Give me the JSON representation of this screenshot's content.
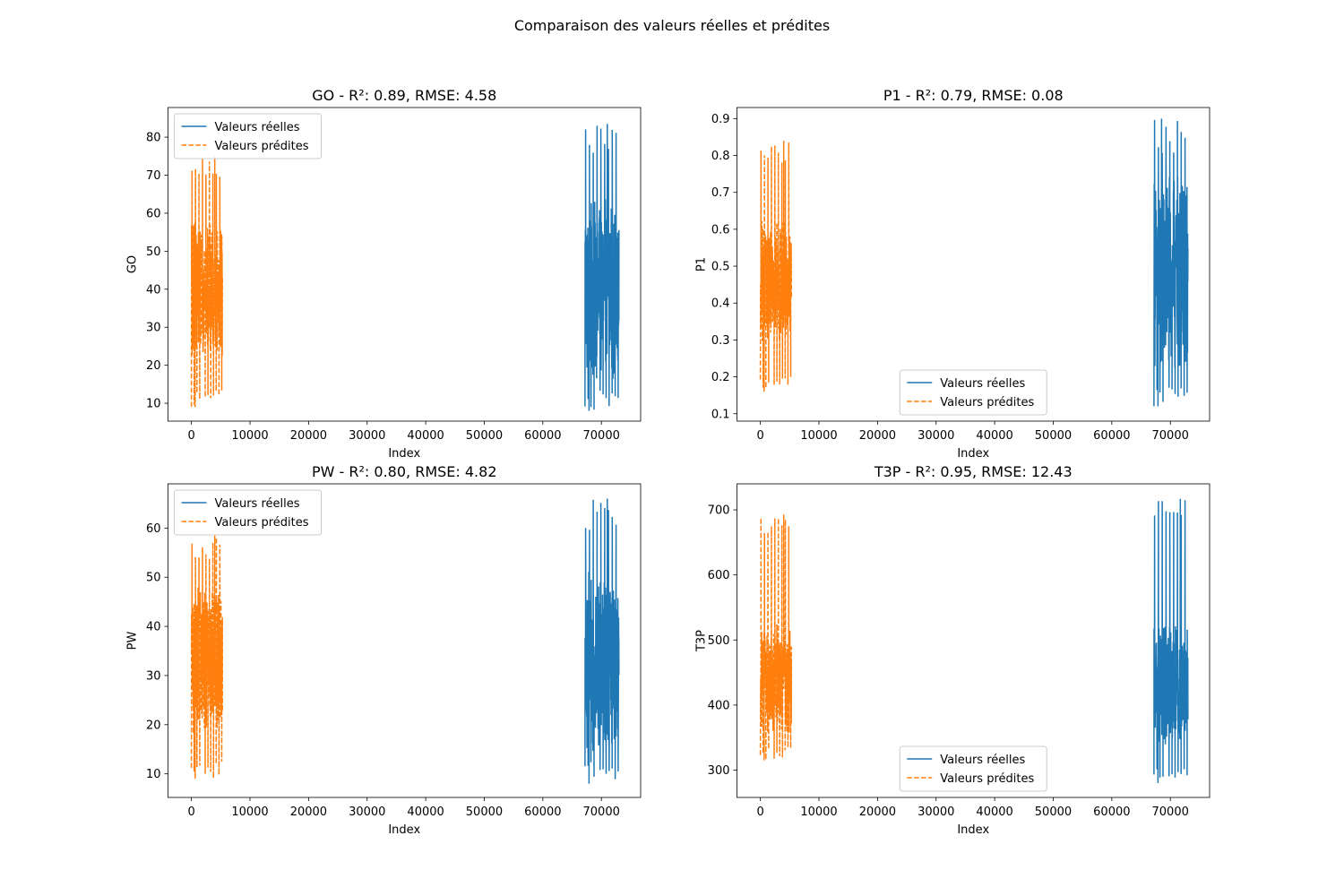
{
  "figure": {
    "suptitle": "Comparaison des valeurs réelles et prédites"
  },
  "colors": {
    "real": "#1f77b4",
    "predicted": "#ff7f0e"
  },
  "chart_data": [
    {
      "type": "line",
      "title": "GO - R²: 0.89, RMSE: 4.58",
      "xlabel": "Index",
      "ylabel": "GO",
      "xlim": [
        -4000,
        76700
      ],
      "ylim": [
        5.3,
        87.8
      ],
      "xticks": [
        0,
        10000,
        20000,
        30000,
        40000,
        50000,
        60000,
        70000
      ],
      "yticks": [
        10,
        20,
        30,
        40,
        50,
        60,
        70,
        80
      ],
      "grid": false,
      "legend_position": "top-left",
      "series": [
        {
          "name": "Valeurs réelles",
          "style": "solid",
          "x_range": [
            67200,
            73000
          ],
          "min": 8,
          "max": 83.5,
          "peak_x": 71000,
          "center": 40,
          "spread": 14
        },
        {
          "name": "Valeurs prédites",
          "style": "dashed",
          "x_range": [
            0,
            5300
          ],
          "min": 9,
          "max": 75,
          "peak_x": 4000,
          "center": 40,
          "spread": 11
        }
      ]
    },
    {
      "type": "line",
      "title": "P1 - R²: 0.79, RMSE: 0.08",
      "xlabel": "Index",
      "ylabel": "P1",
      "xlim": [
        -4000,
        76700
      ],
      "ylim": [
        0.08,
        0.93
      ],
      "xticks": [
        0,
        10000,
        20000,
        30000,
        40000,
        50000,
        60000,
        70000
      ],
      "yticks": [
        0.1,
        0.2,
        0.3,
        0.4,
        0.5,
        0.6,
        0.7,
        0.8,
        0.9
      ],
      "grid": false,
      "legend_position": "bottom-center",
      "series": [
        {
          "name": "Valeurs réelles",
          "style": "solid",
          "x_range": [
            67200,
            73000
          ],
          "min": 0.12,
          "max": 0.9,
          "peak_x": 68500,
          "center": 0.48,
          "spread": 0.16
        },
        {
          "name": "Valeurs prédites",
          "style": "dashed",
          "x_range": [
            0,
            5300
          ],
          "min": 0.16,
          "max": 0.84,
          "peak_x": 4000,
          "center": 0.46,
          "spread": 0.1
        }
      ]
    },
    {
      "type": "line",
      "title": "PW - R²: 0.80, RMSE: 4.82",
      "xlabel": "Index",
      "ylabel": "PW",
      "xlim": [
        -4000,
        76700
      ],
      "ylim": [
        5.2,
        69.0
      ],
      "xticks": [
        0,
        10000,
        20000,
        30000,
        40000,
        50000,
        60000,
        70000
      ],
      "yticks": [
        10,
        20,
        30,
        40,
        50,
        60
      ],
      "grid": false,
      "legend_position": "top-left",
      "series": [
        {
          "name": "Valeurs réelles",
          "style": "solid",
          "x_range": [
            67200,
            73000
          ],
          "min": 8,
          "max": 66,
          "peak_x": 71000,
          "center": 33,
          "spread": 11
        },
        {
          "name": "Valeurs prédites",
          "style": "dashed",
          "x_range": [
            0,
            5300
          ],
          "min": 9,
          "max": 58.5,
          "peak_x": 4000,
          "center": 33,
          "spread": 9
        }
      ]
    },
    {
      "type": "line",
      "title": "T3P - R²: 0.95, RMSE: 12.43",
      "xlabel": "Index",
      "ylabel": "T3P",
      "xlim": [
        -4000,
        76700
      ],
      "ylim": [
        258,
        740
      ],
      "xticks": [
        0,
        10000,
        20000,
        30000,
        40000,
        50000,
        60000,
        70000
      ],
      "yticks": [
        300,
        400,
        500,
        600,
        700
      ],
      "grid": false,
      "legend_position": "bottom-center",
      "series": [
        {
          "name": "Valeurs réelles",
          "style": "solid",
          "x_range": [
            67200,
            73000
          ],
          "min": 280,
          "max": 717,
          "peak_x": 71700,
          "center": 430,
          "spread": 55
        },
        {
          "name": "Valeurs prédites",
          "style": "dashed",
          "x_range": [
            0,
            5300
          ],
          "min": 315,
          "max": 693,
          "peak_x": 4000,
          "center": 440,
          "spread": 50
        }
      ]
    }
  ]
}
